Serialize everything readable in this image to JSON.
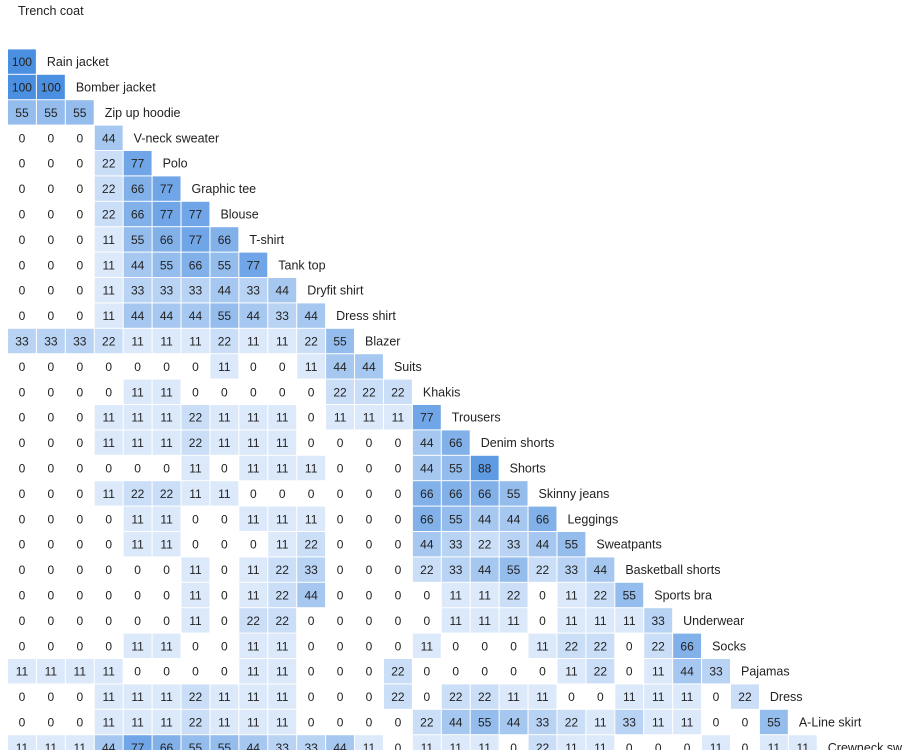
{
  "chart_data": {
    "type": "heatmap",
    "shape": "lower-triangular",
    "labels": [
      "Trench coat",
      "Rain jacket",
      "Bomber jacket",
      "Zip up hoodie",
      "V-neck sweater",
      "Polo",
      "Graphic tee",
      "Blouse",
      "T-shirt",
      "Tank top",
      "Dryfit shirt",
      "Dress shirt",
      "Blazer",
      "Suits",
      "Khakis",
      "Trousers",
      "Denim shorts",
      "Shorts",
      "Skinny jeans",
      "Leggings",
      "Sweatpants",
      "Basketball shorts",
      "Sports bra",
      "Underwear",
      "Socks",
      "Pajamas",
      "Dress",
      "A-Line skirt",
      "Crewneck sweater"
    ],
    "rows": [
      [],
      [
        100
      ],
      [
        100,
        100
      ],
      [
        55,
        55,
        55
      ],
      [
        0,
        0,
        0,
        44
      ],
      [
        0,
        0,
        0,
        22,
        77
      ],
      [
        0,
        0,
        0,
        22,
        66,
        77
      ],
      [
        0,
        0,
        0,
        22,
        66,
        77,
        77
      ],
      [
        0,
        0,
        0,
        11,
        55,
        66,
        77,
        66
      ],
      [
        0,
        0,
        0,
        11,
        44,
        55,
        66,
        55,
        77
      ],
      [
        0,
        0,
        0,
        11,
        33,
        33,
        33,
        44,
        33,
        44
      ],
      [
        0,
        0,
        0,
        11,
        44,
        44,
        44,
        55,
        44,
        33,
        44
      ],
      [
        33,
        33,
        33,
        22,
        11,
        11,
        11,
        22,
        11,
        11,
        22,
        55
      ],
      [
        0,
        0,
        0,
        0,
        0,
        0,
        0,
        11,
        0,
        0,
        11,
        44,
        44
      ],
      [
        0,
        0,
        0,
        0,
        11,
        11,
        0,
        0,
        0,
        0,
        0,
        22,
        22,
        22
      ],
      [
        0,
        0,
        0,
        11,
        11,
        11,
        22,
        11,
        11,
        11,
        0,
        11,
        11,
        11,
        77
      ],
      [
        0,
        0,
        0,
        11,
        11,
        11,
        22,
        11,
        11,
        11,
        0,
        0,
        0,
        0,
        44,
        66
      ],
      [
        0,
        0,
        0,
        0,
        0,
        0,
        11,
        0,
        11,
        11,
        11,
        0,
        0,
        0,
        44,
        55,
        88
      ],
      [
        0,
        0,
        0,
        11,
        22,
        22,
        11,
        11,
        0,
        0,
        0,
        0,
        0,
        0,
        66,
        66,
        66,
        55
      ],
      [
        0,
        0,
        0,
        0,
        11,
        11,
        0,
        0,
        11,
        11,
        11,
        0,
        0,
        0,
        66,
        55,
        44,
        44,
        66
      ],
      [
        0,
        0,
        0,
        0,
        11,
        11,
        0,
        0,
        0,
        11,
        22,
        0,
        0,
        0,
        44,
        33,
        22,
        33,
        44,
        55
      ],
      [
        0,
        0,
        0,
        0,
        0,
        0,
        11,
        0,
        11,
        22,
        33,
        0,
        0,
        0,
        22,
        33,
        44,
        55,
        22,
        33,
        44
      ],
      [
        0,
        0,
        0,
        0,
        0,
        0,
        11,
        0,
        11,
        22,
        44,
        0,
        0,
        0,
        0,
        11,
        11,
        22,
        0,
        11,
        22,
        55
      ],
      [
        0,
        0,
        0,
        0,
        0,
        0,
        11,
        0,
        22,
        22,
        0,
        0,
        0,
        0,
        0,
        11,
        11,
        11,
        0,
        11,
        11,
        11,
        33
      ],
      [
        0,
        0,
        0,
        0,
        11,
        11,
        0,
        0,
        11,
        11,
        0,
        0,
        0,
        0,
        11,
        0,
        0,
        0,
        11,
        22,
        22,
        0,
        22,
        66
      ],
      [
        11,
        11,
        11,
        11,
        0,
        0,
        0,
        0,
        11,
        11,
        0,
        0,
        0,
        22,
        0,
        0,
        0,
        0,
        0,
        11,
        22,
        0,
        11,
        44,
        33
      ],
      [
        0,
        0,
        0,
        11,
        11,
        11,
        22,
        11,
        11,
        11,
        0,
        0,
        0,
        22,
        0,
        22,
        22,
        11,
        11,
        0,
        0,
        11,
        11,
        11,
        0,
        22
      ],
      [
        0,
        0,
        0,
        11,
        11,
        11,
        22,
        11,
        11,
        11,
        0,
        0,
        0,
        0,
        22,
        44,
        55,
        44,
        33,
        22,
        11,
        33,
        11,
        11,
        0,
        0,
        55
      ],
      [
        11,
        11,
        11,
        44,
        77,
        66,
        55,
        55,
        44,
        33,
        33,
        44,
        11,
        0,
        11,
        11,
        11,
        0,
        22,
        11,
        11,
        0,
        0,
        0,
        11,
        0,
        11,
        11
      ]
    ],
    "range": [
      0,
      100
    ],
    "colors": {
      "low": "#eef4fd",
      "high": "#4a8fe0",
      "text": "#222222"
    },
    "grid": false,
    "legend": "none"
  }
}
